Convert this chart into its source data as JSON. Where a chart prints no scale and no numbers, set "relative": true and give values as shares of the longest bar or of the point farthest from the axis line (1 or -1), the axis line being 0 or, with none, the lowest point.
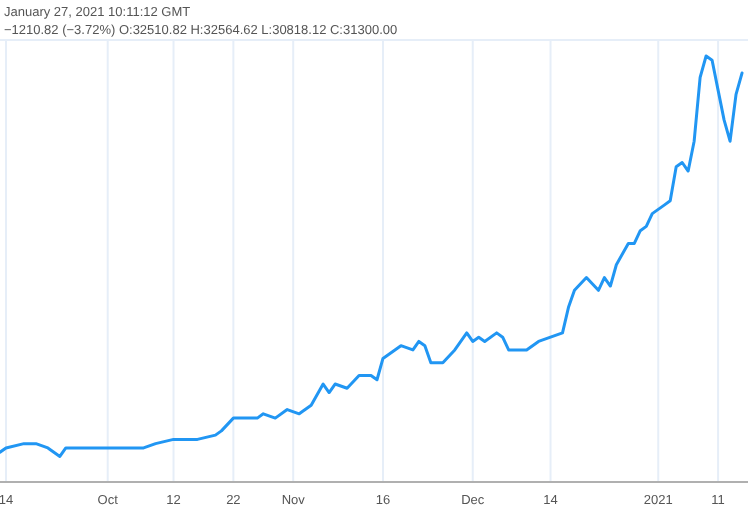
{
  "chart_data": {
    "type": "line",
    "relative": true,
    "grid": "x",
    "annotations": [
      "January 27, 2021 10:11:12 GMT",
      "−1210.82 (−3.72%) O:32510.82 H:32564.62 L:30818.12 C:31300.00"
    ],
    "xlim": [
      "2020-09-13",
      "2021-01-16"
    ],
    "xticks": [
      {
        "value": "2020-09-14",
        "label": "14"
      },
      {
        "value": "2020-10-01",
        "label": "Oct"
      },
      {
        "value": "2020-10-12",
        "label": "12"
      },
      {
        "value": "2020-10-22",
        "label": "22"
      },
      {
        "value": "2020-11-01",
        "label": "Nov"
      },
      {
        "value": "2020-11-16",
        "label": "16"
      },
      {
        "value": "2020-12-01",
        "label": "Dec"
      },
      {
        "value": "2020-12-14",
        "label": "14"
      },
      {
        "value": "2021-01-01",
        "label": "2021"
      },
      {
        "value": "2021-01-11",
        "label": "11"
      }
    ],
    "x": [
      "2020-09-13",
      "2020-09-14",
      "2020-09-17",
      "2020-09-19",
      "2020-09-21",
      "2020-09-23",
      "2020-09-24",
      "2020-09-27",
      "2020-09-29",
      "2020-10-01",
      "2020-10-03",
      "2020-10-05",
      "2020-10-07",
      "2020-10-09",
      "2020-10-12",
      "2020-10-14",
      "2020-10-16",
      "2020-10-19",
      "2020-10-20",
      "2020-10-22",
      "2020-10-24",
      "2020-10-26",
      "2020-10-27",
      "2020-10-29",
      "2020-10-31",
      "2020-11-02",
      "2020-11-04",
      "2020-11-06",
      "2020-11-07",
      "2020-11-08",
      "2020-11-10",
      "2020-11-12",
      "2020-11-14",
      "2020-11-15",
      "2020-11-16",
      "2020-11-17",
      "2020-11-19",
      "2020-11-21",
      "2020-11-22",
      "2020-11-23",
      "2020-11-24",
      "2020-11-26",
      "2020-11-28",
      "2020-11-30",
      "2020-12-01",
      "2020-12-02",
      "2020-12-03",
      "2020-12-05",
      "2020-12-06",
      "2020-12-07",
      "2020-12-09",
      "2020-12-10",
      "2020-12-12",
      "2020-12-16",
      "2020-12-17",
      "2020-12-18",
      "2020-12-20",
      "2020-12-22",
      "2020-12-23",
      "2020-12-24",
      "2020-12-25",
      "2020-12-27",
      "2020-12-28",
      "2020-12-29",
      "2020-12-30",
      "2020-12-31",
      "2021-01-02",
      "2021-01-03",
      "2021-01-04",
      "2021-01-05",
      "2021-01-06",
      "2021-01-07",
      "2021-01-08",
      "2021-01-09",
      "2021-01-10",
      "2021-01-11",
      "2021-01-12",
      "2021-01-13",
      "2021-01-14",
      "2021-01-15"
    ],
    "series": [
      {
        "color": "#2196f3",
        "values": [
          0.07,
          0.08,
          0.09,
          0.09,
          0.08,
          0.06,
          0.08,
          0.08,
          0.08,
          0.08,
          0.08,
          0.08,
          0.08,
          0.09,
          0.1,
          0.1,
          0.1,
          0.11,
          0.12,
          0.15,
          0.15,
          0.15,
          0.16,
          0.15,
          0.17,
          0.16,
          0.18,
          0.23,
          0.21,
          0.23,
          0.22,
          0.25,
          0.25,
          0.24,
          0.29,
          0.3,
          0.32,
          0.31,
          0.33,
          0.32,
          0.28,
          0.28,
          0.31,
          0.35,
          0.33,
          0.34,
          0.33,
          0.35,
          0.34,
          0.31,
          0.31,
          0.31,
          0.33,
          0.35,
          0.41,
          0.45,
          0.48,
          0.45,
          0.48,
          0.46,
          0.51,
          0.56,
          0.56,
          0.59,
          0.6,
          0.63,
          0.65,
          0.66,
          0.74,
          0.75,
          0.73,
          0.8,
          0.95,
          1.0,
          0.99,
          0.92,
          0.85,
          0.8,
          0.91,
          0.96
        ]
      }
    ]
  }
}
